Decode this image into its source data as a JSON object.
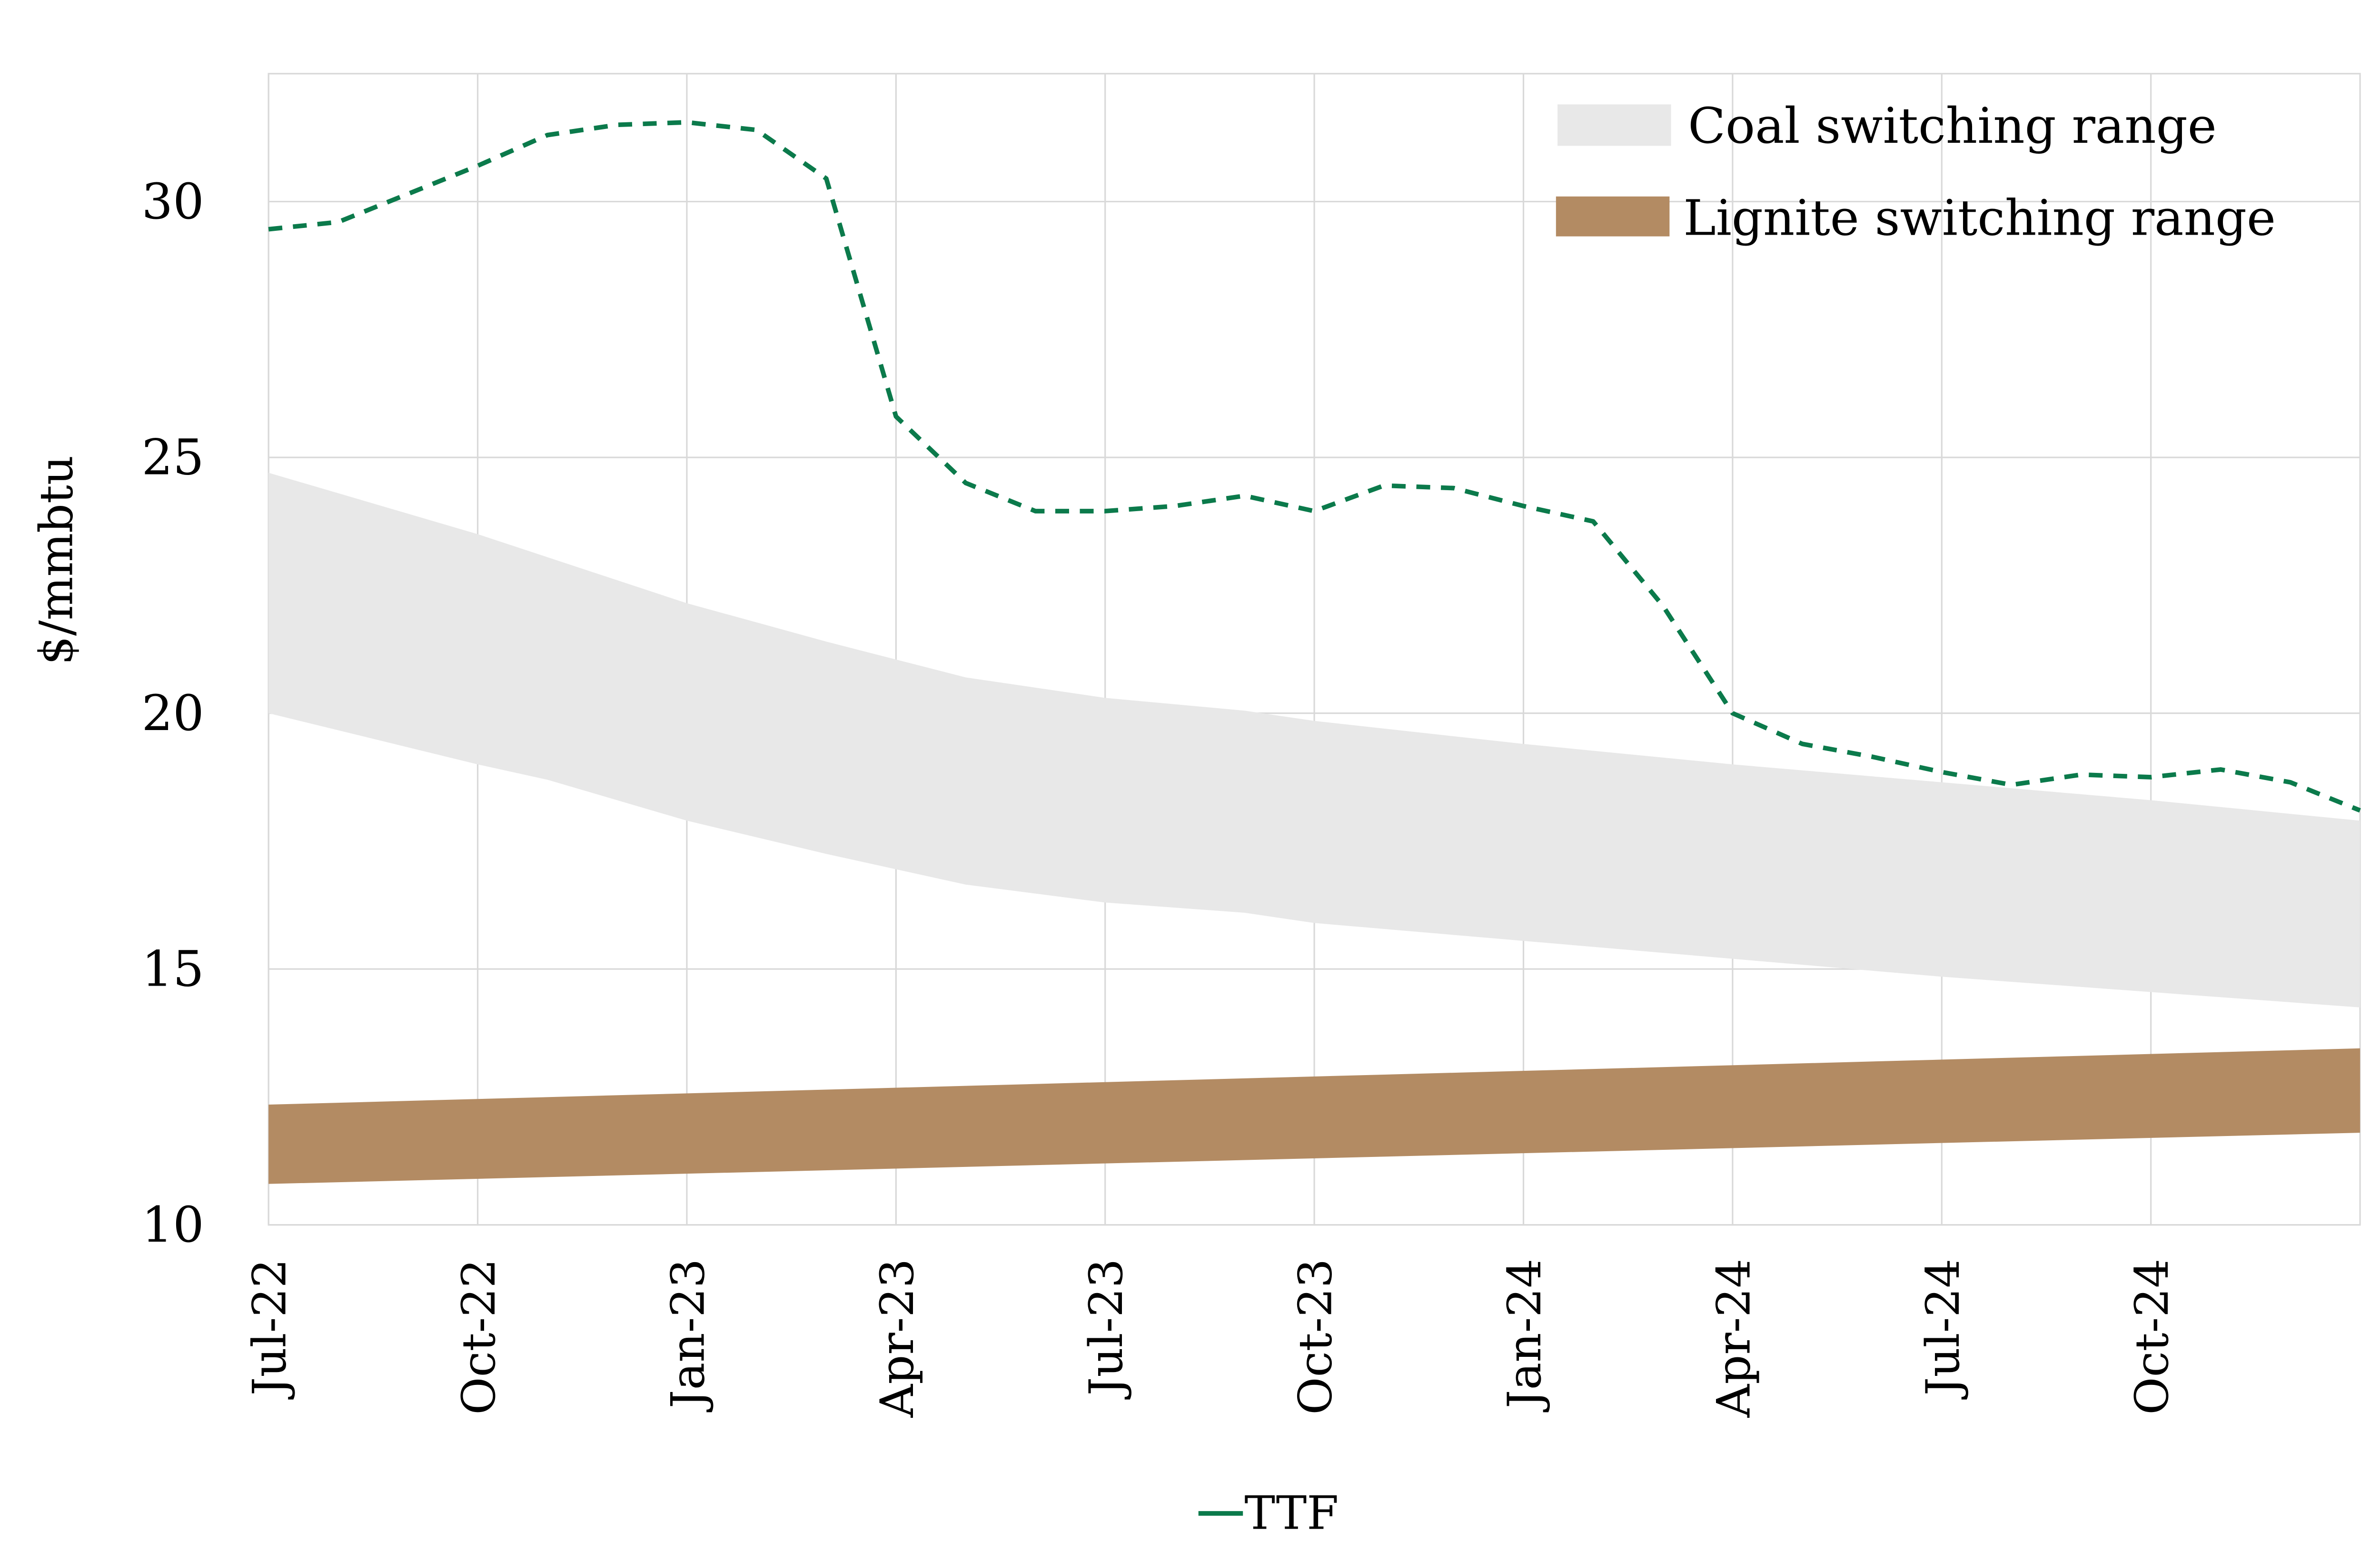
{
  "chart_data": {
    "type": "area",
    "title": "",
    "xlabel": "",
    "ylabel": "$/mmbtu",
    "ylim": [
      10,
      32.5
    ],
    "yticks": [
      10,
      15,
      20,
      25,
      30
    ],
    "xlim": [
      "2022-07",
      "2025-01"
    ],
    "xticks": [
      {
        "date": "2022-07",
        "label": "Jul-22"
      },
      {
        "date": "2022-10",
        "label": "Oct-22"
      },
      {
        "date": "2023-01",
        "label": "Jan-23"
      },
      {
        "date": "2023-04",
        "label": "Apr-23"
      },
      {
        "date": "2023-07",
        "label": "Jul-23"
      },
      {
        "date": "2023-10",
        "label": "Oct-23"
      },
      {
        "date": "2024-01",
        "label": "Jan-24"
      },
      {
        "date": "2024-04",
        "label": "Apr-24"
      },
      {
        "date": "2024-07",
        "label": "Jul-24"
      },
      {
        "date": "2024-10",
        "label": "Oct-24"
      }
    ],
    "grid": true,
    "legend_placement": "top-right",
    "bands": [
      {
        "name": "Coal switching range",
        "color": "#e8e8e8",
        "x": [
          "2022-07",
          "2022-10",
          "2022-11",
          "2023-01",
          "2023-03",
          "2023-05",
          "2023-07",
          "2023-09",
          "2023-10",
          "2024-01",
          "2024-04",
          "2024-07",
          "2024-10",
          "2025-01"
        ],
        "upper": [
          24.7,
          23.5,
          23.05,
          22.15,
          21.4,
          20.7,
          20.3,
          20.05,
          19.85,
          19.4,
          19.0,
          18.65,
          18.3,
          17.9
        ],
        "lower": [
          20.0,
          19.0,
          18.7,
          17.9,
          17.25,
          16.65,
          16.3,
          16.1,
          15.9,
          15.55,
          15.2,
          14.85,
          14.55,
          14.25
        ]
      },
      {
        "name": "Lignite switching range",
        "color": "#b38b63",
        "x": [
          "2022-07",
          "2025-01"
        ],
        "upper": [
          12.35,
          13.45
        ],
        "lower": [
          10.8,
          11.8
        ]
      }
    ],
    "series": [
      {
        "name": "TTF",
        "color": "#0b7a4b",
        "style": "dashed",
        "x": [
          "2022-07",
          "2022-08",
          "2022-09",
          "2022-10",
          "2022-11",
          "2022-12",
          "2023-01",
          "2023-02",
          "2023-03",
          "2023-04",
          "2023-05",
          "2023-06",
          "2023-07",
          "2023-08",
          "2023-09",
          "2023-10",
          "2023-11",
          "2023-12",
          "2024-01",
          "2024-02",
          "2024-03",
          "2024-04",
          "2024-05",
          "2024-06",
          "2024-07",
          "2024-08",
          "2024-09",
          "2024-10",
          "2024-11",
          "2024-12",
          "2025-01"
        ],
        "values": [
          29.46,
          29.6,
          30.15,
          30.7,
          31.3,
          31.5,
          31.55,
          31.4,
          30.45,
          25.8,
          24.5,
          23.95,
          23.95,
          24.05,
          24.25,
          23.95,
          24.45,
          24.4,
          24.05,
          23.75,
          22.1,
          20.0,
          19.4,
          19.15,
          18.85,
          18.6,
          18.8,
          18.75,
          18.9,
          18.65,
          18.1
        ]
      }
    ]
  }
}
